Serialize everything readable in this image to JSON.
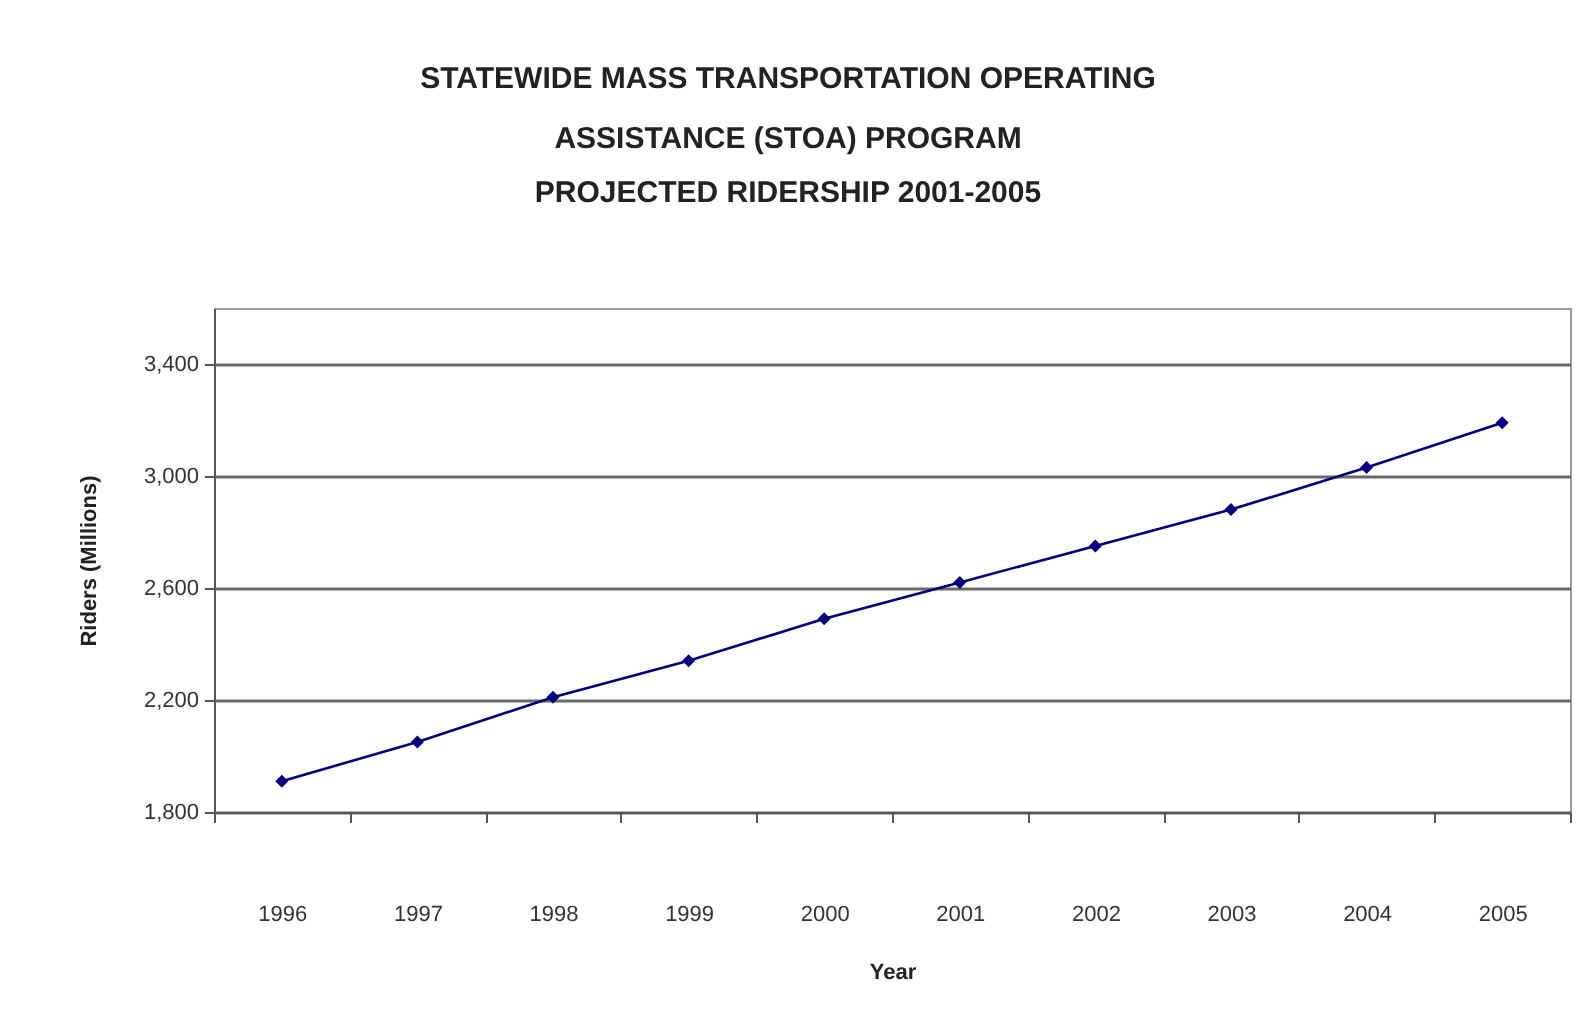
{
  "chart_data": {
    "type": "line",
    "title": "STATEWIDE MASS TRANSPORTATION OPERATING ASSISTANCE (STOA) PROGRAM",
    "subtitle": "PROJECTED RIDERSHIP 2001-2005",
    "xlabel": "Year",
    "ylabel": "Riders (Millions)",
    "categories": [
      "1996",
      "1997",
      "1998",
      "1999",
      "2000",
      "2001",
      "2002",
      "2003",
      "2004",
      "2005"
    ],
    "values": [
      1910,
      2050,
      2210,
      2340,
      2490,
      2620,
      2750,
      2880,
      3030,
      3190
    ],
    "color": "#000080",
    "ylim": [
      1800,
      3600
    ],
    "yticks": [
      {
        "value": 1800,
        "label": "1,800"
      },
      {
        "value": 2200,
        "label": "2,200"
      },
      {
        "value": 2600,
        "label": "2,600"
      },
      {
        "value": 3000,
        "label": "3,000"
      },
      {
        "value": 3400,
        "label": "3,400"
      }
    ],
    "grid": "y",
    "marker": "diamond"
  }
}
